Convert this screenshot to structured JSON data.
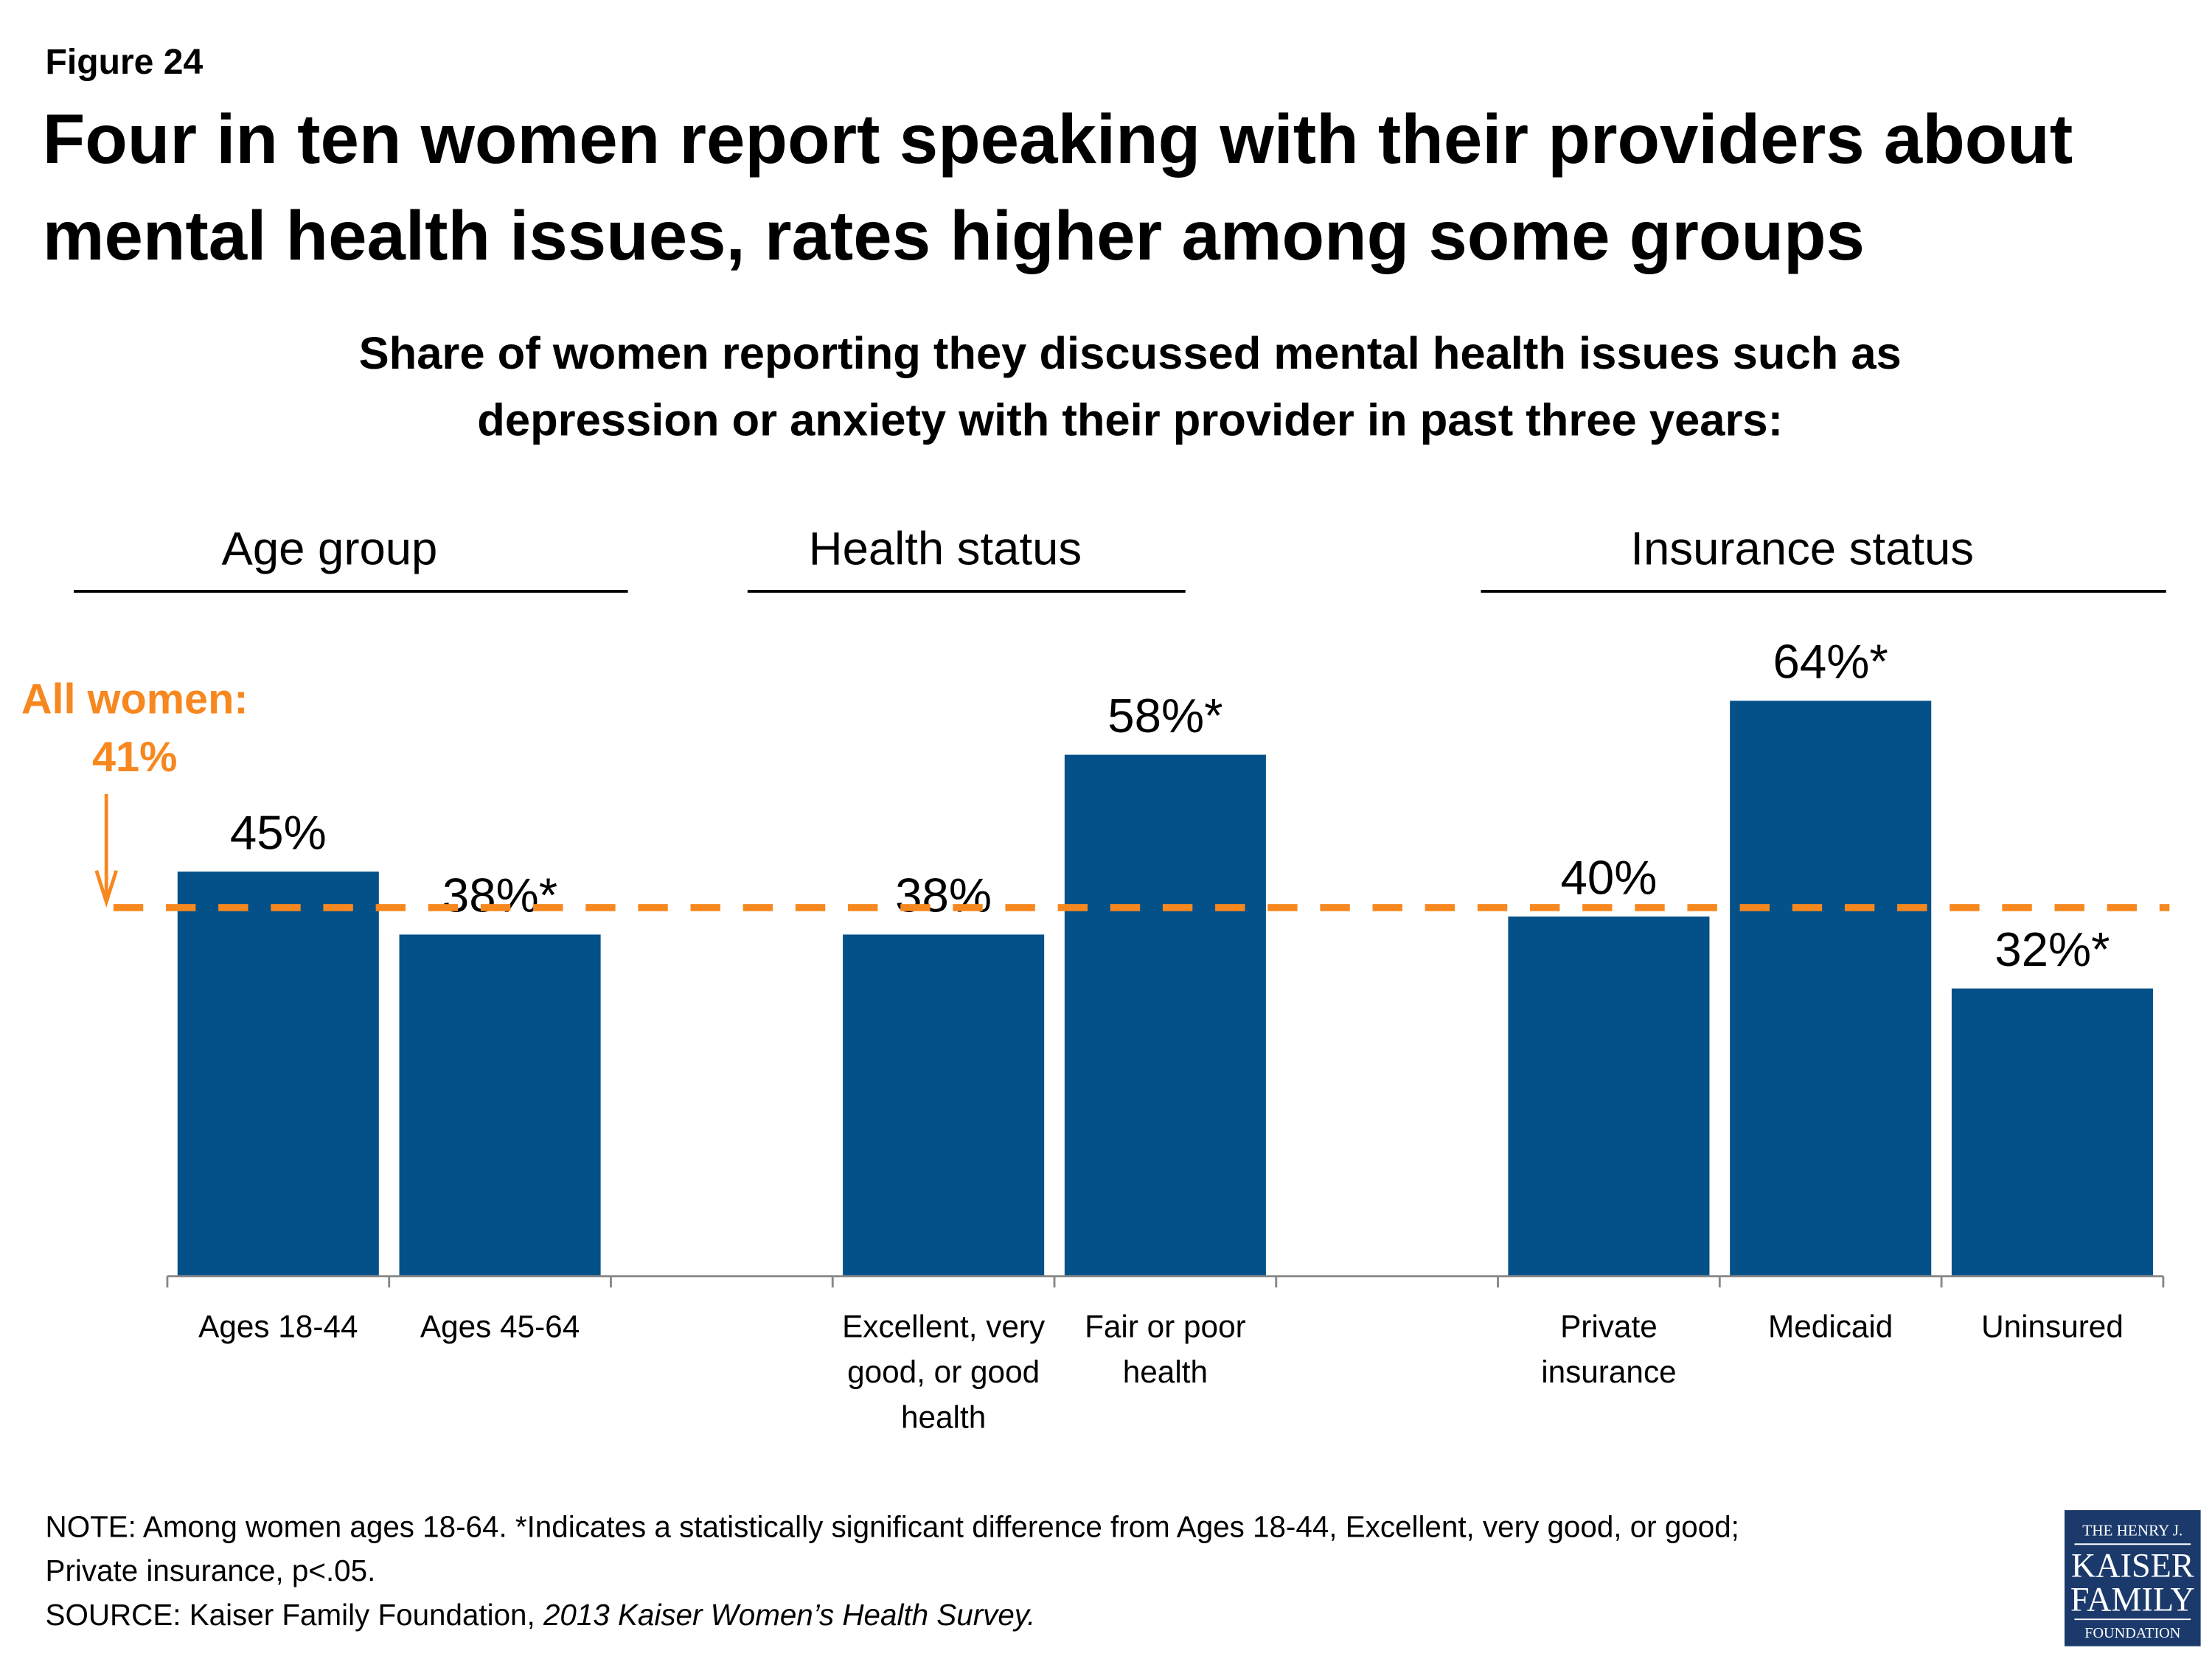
{
  "figure_label": "Figure 24",
  "title_lines": [
    "Four in ten women report speaking with their providers about",
    "mental health issues, rates higher among some groups"
  ],
  "subtitle_lines": [
    "Share of women reporting they discussed mental health issues such as",
    "depression or anxiety with their provider in past three years:"
  ],
  "colors": {
    "bar": "#045189",
    "reference": "#F7881F",
    "text": "#000000",
    "logo_bg": "#1B3A6B"
  },
  "chart_data": {
    "type": "bar",
    "ylim": [
      0,
      100
    ],
    "grid": false,
    "groups": [
      {
        "name": "Age group",
        "categories": [
          [
            "Ages 18-44"
          ],
          [
            "Ages 45-64"
          ]
        ],
        "values": [
          45,
          38
        ],
        "labels": [
          "45%",
          "38%*"
        ]
      },
      {
        "name": "Health status",
        "categories": [
          [
            "Excellent, very",
            "good, or good",
            "health"
          ],
          [
            "Fair or poor",
            "health"
          ]
        ],
        "values": [
          38,
          58
        ],
        "labels": [
          "38%",
          "58%*"
        ]
      },
      {
        "name": "Insurance status",
        "categories": [
          [
            "Private",
            "insurance"
          ],
          [
            "Medicaid"
          ],
          [
            "Uninsured"
          ]
        ],
        "values": [
          40,
          64,
          32
        ],
        "labels": [
          "40%",
          "64%*",
          "32%*"
        ]
      }
    ],
    "reference_line": {
      "value": 41,
      "label_lines": [
        "All women:",
        "41%"
      ]
    }
  },
  "notes": {
    "note_lines": [
      "NOTE: Among women ages 18-64. *Indicates a statistically significant difference from Ages 18-44, Excellent, very good, or good;",
      "Private insurance, p<.05."
    ],
    "source_prefix": "SOURCE: Kaiser Family Foundation, ",
    "source_italic": "2013 Kaiser Women’s Health Survey."
  },
  "logo": {
    "lines": [
      "THE HENRY J.",
      "KAISER",
      "FAMILY",
      "FOUNDATION"
    ]
  }
}
